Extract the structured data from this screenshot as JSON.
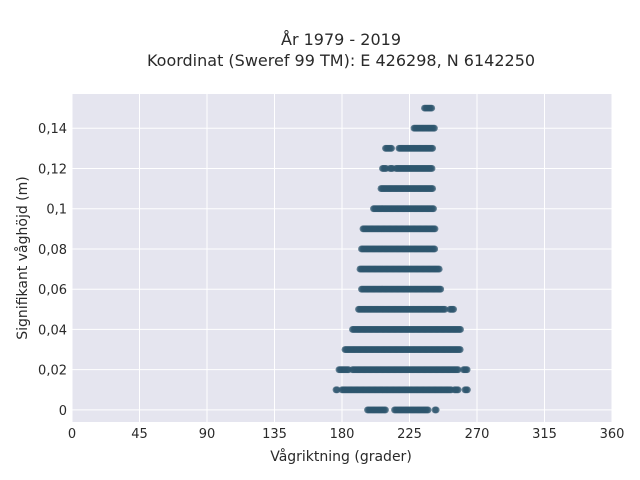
{
  "chart_data": {
    "type": "scatter",
    "title_line1": "År 1979 - 2019",
    "title_line2": "Koordinat (Sweref 99 TM): E 426298, N 6142250",
    "xlabel": "Vågriktning (grader)",
    "ylabel": "Signifikant våghöjd (m)",
    "xlim": [
      0,
      360
    ],
    "ylim": [
      -0.006,
      0.157
    ],
    "x_ticks": [
      0,
      45,
      90,
      135,
      180,
      225,
      270,
      315,
      360
    ],
    "y_ticks": [
      0,
      0.02,
      0.04,
      0.06,
      0.08,
      0.1,
      0.12,
      0.14
    ],
    "x_tick_labels": [
      "0",
      "45",
      "90",
      "135",
      "180",
      "225",
      "270",
      "315",
      "360"
    ],
    "y_tick_labels": [
      "0",
      "0,02",
      "0,04",
      "0,06",
      "0,08",
      "0,1",
      "0,12",
      "0,14"
    ],
    "grid": true,
    "point_color": "#2e566e",
    "background_color": "#e5e5ef",
    "point_bands": [
      {
        "y": 0.0,
        "x_ranges": [
          [
            197,
            209
          ],
          [
            215,
            238
          ],
          [
            242,
            243
          ]
        ]
      },
      {
        "y": 0.01,
        "x_ranges": [
          [
            176,
            177
          ],
          [
            180,
            253
          ],
          [
            255,
            258
          ],
          [
            262,
            264
          ]
        ]
      },
      {
        "y": 0.02,
        "x_ranges": [
          [
            178,
            185
          ],
          [
            187,
            258
          ],
          [
            261,
            264
          ]
        ]
      },
      {
        "y": 0.03,
        "x_ranges": [
          [
            182,
            259
          ]
        ]
      },
      {
        "y": 0.04,
        "x_ranges": [
          [
            187,
            259
          ]
        ]
      },
      {
        "y": 0.05,
        "x_ranges": [
          [
            191,
            249
          ],
          [
            252,
            255
          ]
        ]
      },
      {
        "y": 0.06,
        "x_ranges": [
          [
            193,
            246
          ]
        ]
      },
      {
        "y": 0.07,
        "x_ranges": [
          [
            192,
            245
          ]
        ]
      },
      {
        "y": 0.08,
        "x_ranges": [
          [
            193,
            242
          ]
        ]
      },
      {
        "y": 0.09,
        "x_ranges": [
          [
            194,
            242
          ]
        ]
      },
      {
        "y": 0.1,
        "x_ranges": [
          [
            201,
            241
          ]
        ]
      },
      {
        "y": 0.11,
        "x_ranges": [
          [
            206,
            241
          ]
        ]
      },
      {
        "y": 0.12,
        "x_ranges": [
          [
            207,
            210
          ],
          [
            212,
            214
          ],
          [
            216,
            240
          ]
        ]
      },
      {
        "y": 0.13,
        "x_ranges": [
          [
            209,
            213
          ],
          [
            218,
            241
          ]
        ]
      },
      {
        "y": 0.14,
        "x_ranges": [
          [
            228,
            242
          ]
        ]
      },
      {
        "y": 0.15,
        "x_ranges": [
          [
            235,
            240
          ]
        ]
      }
    ]
  }
}
